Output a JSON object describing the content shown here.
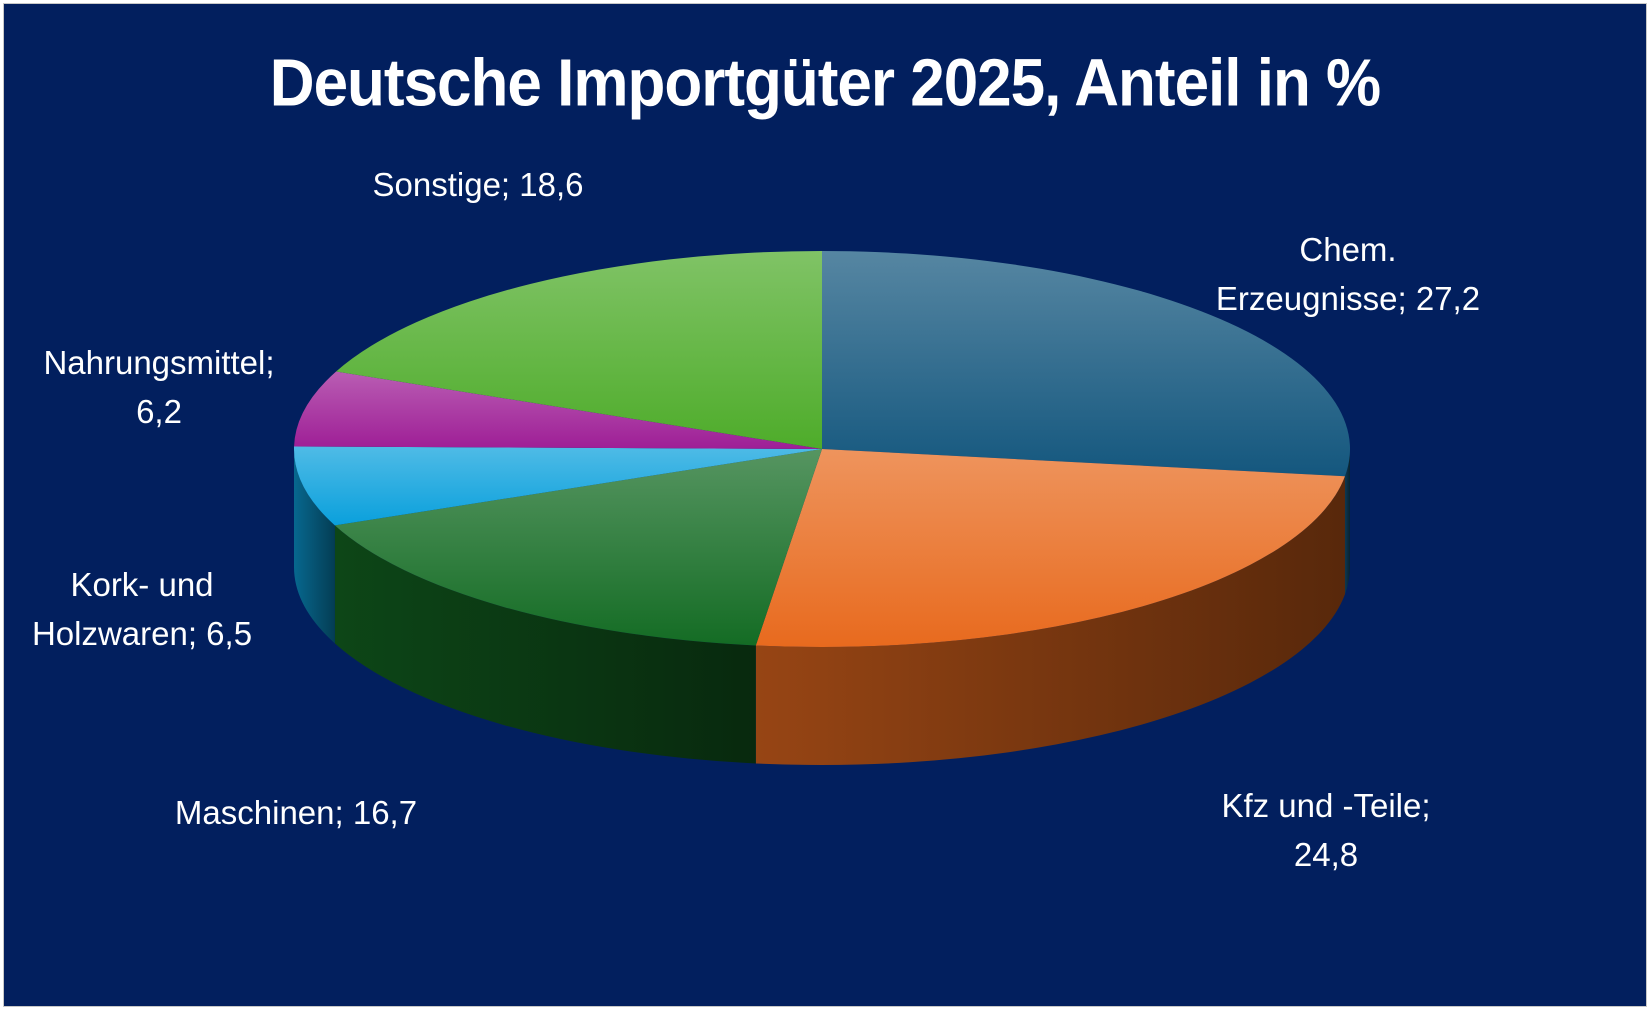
{
  "chart_data": {
    "type": "pie",
    "title": "Deutsche Importgüter 2025, Anteil in %",
    "legend": "none",
    "slices": [
      {
        "key": "chem",
        "label_lines": [
          "Chem.",
          "Erzeugnisse; 27,2"
        ],
        "value": 27.2,
        "color": "#14577e"
      },
      {
        "key": "kfz",
        "label_lines": [
          "Kfz und -Teile;",
          "24,8"
        ],
        "value": 24.8,
        "color": "#e86a1e"
      },
      {
        "key": "maschinen",
        "label_lines": [
          "Maschinen; 16,7"
        ],
        "value": 16.7,
        "color": "#146c24"
      },
      {
        "key": "kork",
        "label_lines": [
          "Kork- und",
          "Holzwaren; 6,5"
        ],
        "value": 6.5,
        "color": "#0aa0dc"
      },
      {
        "key": "nahrung",
        "label_lines": [
          "Nahrungsmittel;",
          "6,2"
        ],
        "value": 6.2,
        "color": "#9e1e96"
      },
      {
        "key": "sonstige",
        "label_lines": [
          "Sonstige; 18,6"
        ],
        "value": 18.6,
        "color": "#4eac2a"
      }
    ]
  }
}
